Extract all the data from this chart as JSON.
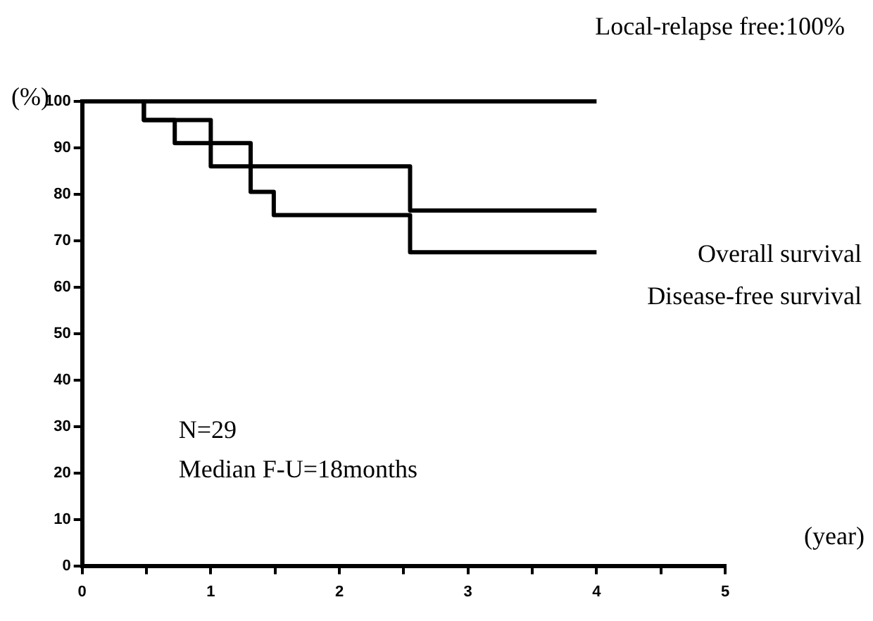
{
  "chart_data": {
    "type": "step",
    "xlabel": "(year)",
    "ylabel": "(%)",
    "xlim": [
      0,
      5
    ],
    "xticks": [
      0,
      {
        "value": 0.5,
        "label": null
      },
      1,
      {
        "value": 1.5,
        "label": null
      },
      2,
      {
        "value": 2.5,
        "label": null
      },
      3,
      {
        "value": 3.5,
        "label": null
      },
      4,
      {
        "value": 4.5,
        "label": null
      },
      5
    ],
    "ylim": [
      0,
      100
    ],
    "yticks": [
      0,
      10,
      20,
      30,
      40,
      50,
      60,
      70,
      80,
      90,
      100
    ],
    "series": [
      {
        "name": "Local-relapse free:100%",
        "color": "#000000",
        "x": [
          0,
          4
        ],
        "values": [
          100,
          100
        ]
      },
      {
        "name": "Overall survival",
        "color": "#000000",
        "x": [
          0,
          0.48,
          1.0,
          2.55,
          4
        ],
        "values": [
          100,
          96,
          86,
          76.5,
          76.5
        ]
      },
      {
        "name": "Disease-free survival",
        "color": "#000000",
        "x": [
          0,
          0.48,
          0.72,
          1.31,
          1.49,
          2.55,
          4
        ],
        "values": [
          100,
          96,
          91,
          80.5,
          75.5,
          67.5,
          67.5
        ]
      }
    ],
    "annotations": [
      "N=29",
      "Median F-U=18months"
    ],
    "grid": false,
    "legend": false,
    "marker": "none",
    "line_style": "solid"
  }
}
